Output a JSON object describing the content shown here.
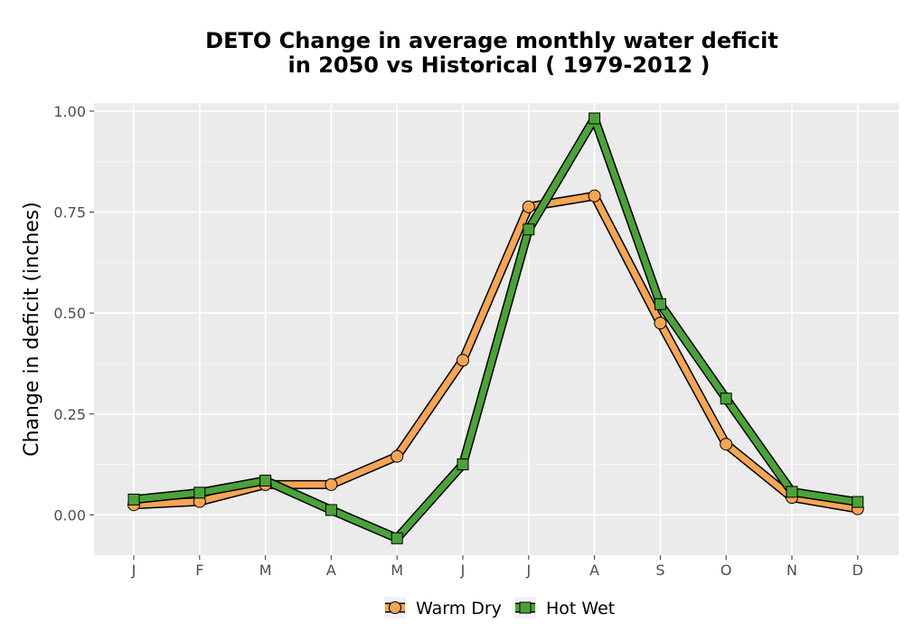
{
  "chart_data": {
    "type": "line",
    "title_line1": "DETO  Change in average monthly water deficit",
    "title_line2": "in 2050 vs Historical ( 1979-2012 )",
    "xlabel": "",
    "ylabel": "Change in deficit (inches)",
    "categories": [
      "J",
      "F",
      "M",
      "A",
      "M",
      "J",
      "J",
      "A",
      "S",
      "O",
      "N",
      "D"
    ],
    "ylim": [
      -0.1,
      1.02
    ],
    "yticks": [
      "0.00",
      "0.25",
      "0.50",
      "0.75",
      "1.00"
    ],
    "ytick_values": [
      0,
      0.25,
      0.5,
      0.75,
      1.0
    ],
    "grid": true,
    "legend_position": "bottom",
    "series": [
      {
        "name": "Warm Dry",
        "color": "#f5a556",
        "marker": "circle",
        "values": [
          0.025,
          0.033,
          0.075,
          0.075,
          0.145,
          0.383,
          0.763,
          0.79,
          0.475,
          0.175,
          0.043,
          0.015
        ]
      },
      {
        "name": "Hot Wet",
        "color": "#4ca23a",
        "marker": "square",
        "values": [
          0.038,
          0.055,
          0.085,
          0.012,
          -0.058,
          0.125,
          0.707,
          0.982,
          0.522,
          0.288,
          0.057,
          0.032
        ]
      }
    ]
  }
}
